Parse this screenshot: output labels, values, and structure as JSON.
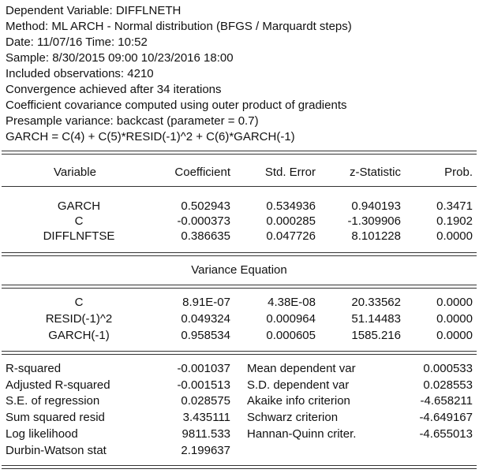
{
  "header": {
    "lines": [
      "Dependent Variable: DIFFLNETH",
      "Method: ML ARCH - Normal distribution (BFGS / Marquardt steps)",
      "Date: 11/07/16   Time: 10:52",
      "Sample: 8/30/2015 09:00 10/23/2016 18:00",
      "Included observations: 4210",
      "Convergence achieved after 34 iterations",
      "Coefficient covariance computed using outer product of gradients",
      "Presample variance: backcast (parameter = 0.7)",
      "GARCH = C(4) + C(5)*RESID(-1)^2 + C(6)*GARCH(-1)"
    ]
  },
  "table": {
    "columns": [
      "Variable",
      "Coefficient",
      "Std. Error",
      "z-Statistic",
      "Prob."
    ],
    "mean_rows": [
      [
        "GARCH",
        "0.502943",
        "0.534936",
        "0.940193",
        "0.3471"
      ],
      [
        "C",
        "-0.000373",
        "0.000285",
        "-1.309906",
        "0.1902"
      ],
      [
        "DIFFLNFTSE",
        "0.386635",
        "0.047726",
        "8.101228",
        "0.0000"
      ]
    ],
    "variance_title": "Variance Equation",
    "variance_rows": [
      [
        "C",
        "8.91E-07",
        "4.38E-08",
        "20.33562",
        "0.0000"
      ],
      [
        "RESID(-1)^2",
        "0.049324",
        "0.000964",
        "51.14483",
        "0.0000"
      ],
      [
        "GARCH(-1)",
        "0.958534",
        "0.000605",
        "1585.216",
        "0.0000"
      ]
    ]
  },
  "stats": {
    "left": [
      [
        "R-squared",
        "-0.001037"
      ],
      [
        "Adjusted R-squared",
        "-0.001513"
      ],
      [
        "S.E. of regression",
        "0.028575"
      ],
      [
        "Sum squared resid",
        "3.435111"
      ],
      [
        "Log likelihood",
        "9811.533"
      ],
      [
        "Durbin-Watson stat",
        "2.199637"
      ]
    ],
    "right": [
      [
        "Mean dependent var",
        "0.000533"
      ],
      [
        "S.D. dependent var",
        "0.028553"
      ],
      [
        "Akaike info criterion",
        "-4.658211"
      ],
      [
        "Schwarz criterion",
        "-4.649167"
      ],
      [
        "Hannan-Quinn criter.",
        "-4.655013"
      ]
    ]
  }
}
